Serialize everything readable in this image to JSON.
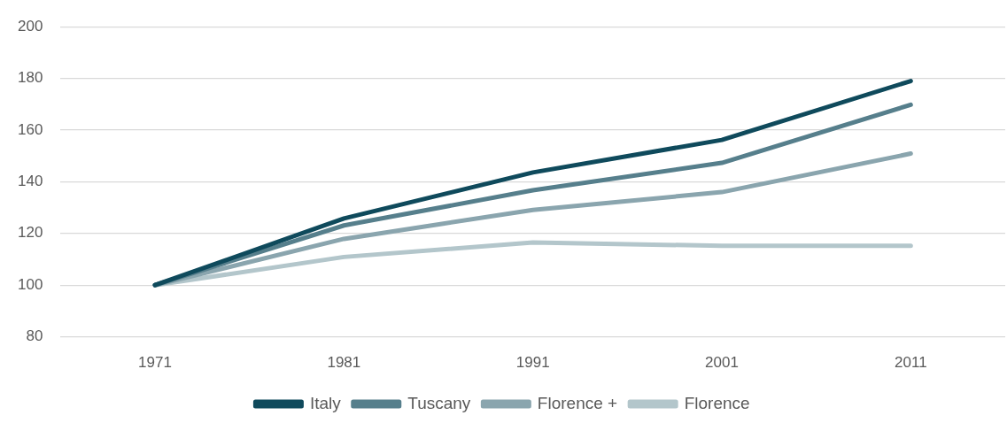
{
  "chart_data": {
    "type": "line",
    "categories": [
      "1971",
      "1981",
      "1991",
      "2001",
      "2011"
    ],
    "series": [
      {
        "name": "Italy",
        "color": "#0f4a5c",
        "values": [
          100,
          125.8,
          143.6,
          156.2,
          179
        ]
      },
      {
        "name": "Tuscany",
        "color": "#567f8c",
        "values": [
          100,
          123.1,
          136.7,
          147.3,
          169.8
        ]
      },
      {
        "name": "Florence +",
        "color": "#8aa5ae",
        "values": [
          100,
          117.9,
          129.1,
          136,
          150.9
        ]
      },
      {
        "name": "Florence",
        "color": "#b3c6cb",
        "values": [
          100,
          110.9,
          116.5,
          115.2,
          115.2
        ]
      }
    ],
    "ylim": [
      80,
      200
    ],
    "yticks": [
      80,
      100,
      120,
      140,
      160,
      180,
      200
    ],
    "grid": "y",
    "legend": "bottom",
    "marker": "none",
    "line_style": "solid"
  }
}
